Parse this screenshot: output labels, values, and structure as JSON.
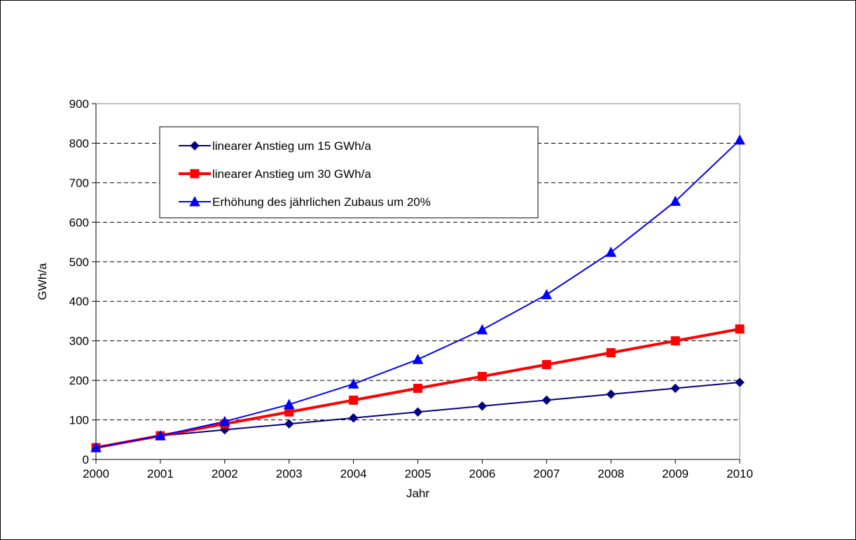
{
  "chart_data": {
    "type": "line",
    "title": "",
    "xlabel": "Jahr",
    "ylabel": "GWh/a",
    "x": [
      2000,
      2001,
      2002,
      2003,
      2004,
      2005,
      2006,
      2007,
      2008,
      2009,
      2010
    ],
    "ylim": [
      0,
      900
    ],
    "yticks": [
      0,
      100,
      200,
      300,
      400,
      500,
      600,
      700,
      800,
      900
    ],
    "grid": "horizontal-dashed",
    "legend_position": "top-left",
    "series": [
      {
        "name": "linearer Anstieg um 15 GWh/a",
        "color": "#000080",
        "marker": "diamond",
        "values": [
          30,
          60,
          75,
          90,
          105,
          120,
          135,
          150,
          165,
          180,
          195
        ]
      },
      {
        "name": "linearer Anstieg um 30 GWh/a",
        "color": "#ff0000",
        "marker": "square",
        "values": [
          30,
          60,
          90,
          120,
          150,
          180,
          210,
          240,
          270,
          300,
          330
        ]
      },
      {
        "name": "Erhöhung des jährlichen Zubaus um 20%",
        "color": "#0000ff",
        "marker": "triangle",
        "values": [
          30,
          60,
          96,
          139,
          191,
          253,
          328,
          417,
          524,
          653,
          808
        ]
      }
    ]
  }
}
